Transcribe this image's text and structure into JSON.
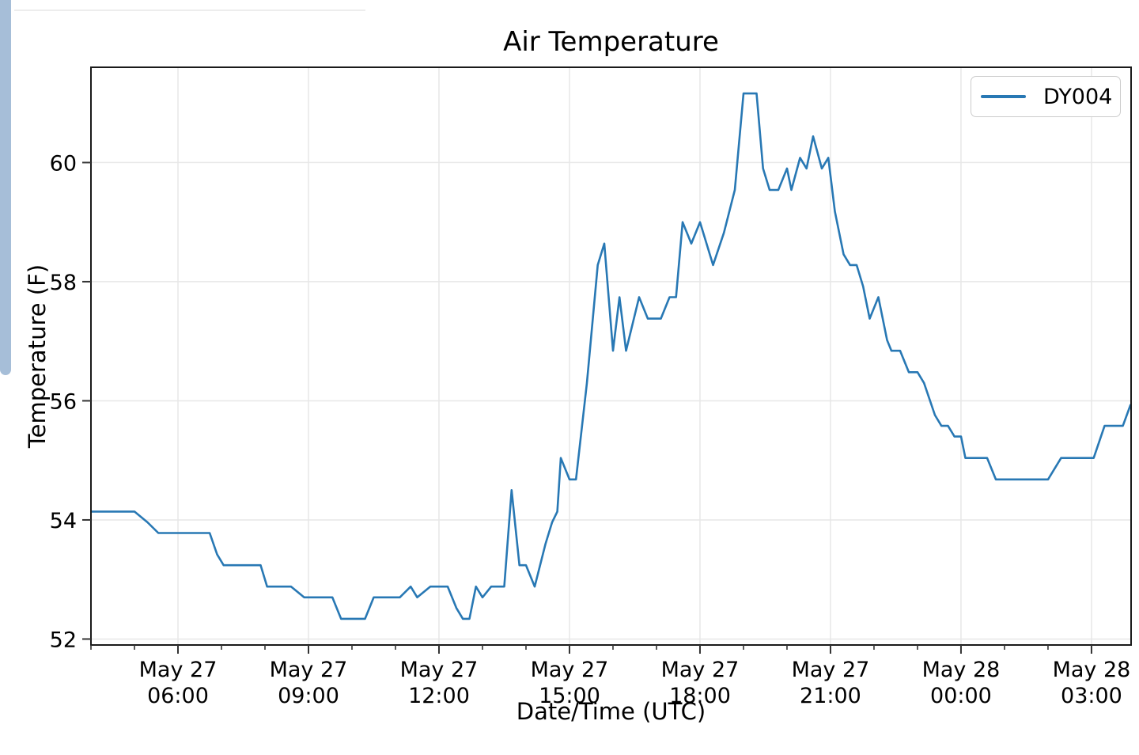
{
  "page": {
    "scrollbar_color": "#a6bed8",
    "window_edge_line_color": "#ededed",
    "background": "#ffffff"
  },
  "chart_data": {
    "type": "line",
    "title": "Air Temperature",
    "xlabel": "Date/Time (UTC)",
    "ylabel": "Temperature (F)",
    "legend": {
      "position": "upper right",
      "entries": [
        "DY004"
      ]
    },
    "x_unit": "hours since May 27 00:00 UTC",
    "xlim": [
      4.0,
      27.91
    ],
    "ylim": [
      51.9,
      61.6
    ],
    "grid": "major",
    "y_ticks": [
      52,
      54,
      56,
      58,
      60
    ],
    "x_minor_tick_interval_hours": 1,
    "x_major_ticks": [
      {
        "hour": 6,
        "label_line1": "May 27",
        "label_line2": "06:00"
      },
      {
        "hour": 9,
        "label_line1": "May 27",
        "label_line2": "09:00"
      },
      {
        "hour": 12,
        "label_line1": "May 27",
        "label_line2": "12:00"
      },
      {
        "hour": 15,
        "label_line1": "May 27",
        "label_line2": "15:00"
      },
      {
        "hour": 18,
        "label_line1": "May 27",
        "label_line2": "18:00"
      },
      {
        "hour": 21,
        "label_line1": "May 27",
        "label_line2": "21:00"
      },
      {
        "hour": 24,
        "label_line1": "May 28",
        "label_line2": "00:00"
      },
      {
        "hour": 27,
        "label_line1": "May 28",
        "label_line2": "03:00"
      }
    ],
    "style": {
      "grid_color": "#e7e7e7",
      "spine_color": "#1a1a1a",
      "tick_color": "#333333",
      "text_color": "#000000",
      "plot_background": "#ffffff"
    },
    "series": [
      {
        "name": "DY004",
        "color": "#2878b4",
        "points": [
          [
            4.0,
            54.14
          ],
          [
            4.25,
            54.14
          ],
          [
            4.5,
            54.14
          ],
          [
            4.75,
            54.14
          ],
          [
            5.0,
            54.14
          ],
          [
            5.3,
            53.96
          ],
          [
            5.55,
            53.78
          ],
          [
            5.8,
            53.78
          ],
          [
            6.1,
            53.78
          ],
          [
            6.4,
            53.78
          ],
          [
            6.73,
            53.78
          ],
          [
            6.9,
            53.42
          ],
          [
            7.05,
            53.24
          ],
          [
            7.3,
            53.24
          ],
          [
            7.6,
            53.24
          ],
          [
            7.9,
            53.24
          ],
          [
            8.05,
            52.88
          ],
          [
            8.3,
            52.88
          ],
          [
            8.6,
            52.88
          ],
          [
            8.9,
            52.7
          ],
          [
            9.2,
            52.7
          ],
          [
            9.55,
            52.7
          ],
          [
            9.75,
            52.34
          ],
          [
            10.0,
            52.34
          ],
          [
            10.3,
            52.34
          ],
          [
            10.5,
            52.7
          ],
          [
            10.8,
            52.7
          ],
          [
            11.1,
            52.7
          ],
          [
            11.35,
            52.88
          ],
          [
            11.5,
            52.7
          ],
          [
            11.8,
            52.88
          ],
          [
            12.0,
            52.88
          ],
          [
            12.2,
            52.88
          ],
          [
            12.4,
            52.52
          ],
          [
            12.55,
            52.34
          ],
          [
            12.7,
            52.34
          ],
          [
            12.85,
            52.88
          ],
          [
            13.0,
            52.7
          ],
          [
            13.2,
            52.88
          ],
          [
            13.5,
            52.88
          ],
          [
            13.67,
            54.5
          ],
          [
            13.85,
            53.24
          ],
          [
            14.0,
            53.24
          ],
          [
            14.2,
            52.88
          ],
          [
            14.45,
            53.6
          ],
          [
            14.6,
            53.96
          ],
          [
            14.72,
            54.14
          ],
          [
            14.8,
            55.04
          ],
          [
            15.0,
            54.68
          ],
          [
            15.15,
            54.68
          ],
          [
            15.4,
            56.3
          ],
          [
            15.65,
            58.28
          ],
          [
            15.8,
            58.64
          ],
          [
            16.0,
            56.84
          ],
          [
            16.15,
            57.74
          ],
          [
            16.3,
            56.84
          ],
          [
            16.6,
            57.74
          ],
          [
            16.8,
            57.38
          ],
          [
            17.1,
            57.38
          ],
          [
            17.3,
            57.74
          ],
          [
            17.45,
            57.74
          ],
          [
            17.6,
            59.0
          ],
          [
            17.8,
            58.64
          ],
          [
            18.0,
            59.0
          ],
          [
            18.3,
            58.28
          ],
          [
            18.55,
            58.82
          ],
          [
            18.8,
            59.54
          ],
          [
            19.0,
            61.16
          ],
          [
            19.3,
            61.16
          ],
          [
            19.45,
            59.9
          ],
          [
            19.6,
            59.54
          ],
          [
            19.8,
            59.54
          ],
          [
            20.0,
            59.9
          ],
          [
            20.1,
            59.54
          ],
          [
            20.3,
            60.08
          ],
          [
            20.45,
            59.9
          ],
          [
            20.6,
            60.44
          ],
          [
            20.8,
            59.9
          ],
          [
            20.95,
            60.08
          ],
          [
            21.1,
            59.18
          ],
          [
            21.3,
            58.46
          ],
          [
            21.45,
            58.28
          ],
          [
            21.6,
            58.28
          ],
          [
            21.75,
            57.92
          ],
          [
            21.9,
            57.38
          ],
          [
            22.1,
            57.74
          ],
          [
            22.3,
            57.02
          ],
          [
            22.4,
            56.84
          ],
          [
            22.6,
            56.84
          ],
          [
            22.8,
            56.48
          ],
          [
            23.0,
            56.48
          ],
          [
            23.15,
            56.3
          ],
          [
            23.4,
            55.76
          ],
          [
            23.55,
            55.58
          ],
          [
            23.7,
            55.58
          ],
          [
            23.85,
            55.4
          ],
          [
            24.0,
            55.4
          ],
          [
            24.1,
            55.04
          ],
          [
            24.35,
            55.04
          ],
          [
            24.6,
            55.04
          ],
          [
            24.8,
            54.68
          ],
          [
            25.1,
            54.68
          ],
          [
            25.4,
            54.68
          ],
          [
            25.7,
            54.68
          ],
          [
            26.0,
            54.68
          ],
          [
            26.3,
            55.04
          ],
          [
            26.6,
            55.04
          ],
          [
            26.9,
            55.04
          ],
          [
            27.05,
            55.04
          ],
          [
            27.3,
            55.58
          ],
          [
            27.6,
            55.58
          ],
          [
            27.72,
            55.58
          ],
          [
            27.9,
            55.94
          ]
        ]
      }
    ]
  }
}
